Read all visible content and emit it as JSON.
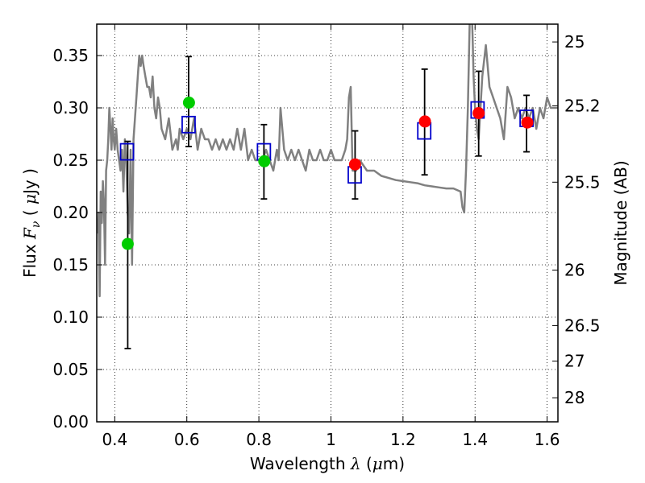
{
  "chart_data": {
    "type": "scatter",
    "title": "",
    "xlabel": {
      "prefix": "Wavelength  ",
      "symbol": "λ",
      "unit_open": " (",
      "unit_mu": "μ",
      "unit_close": "m)"
    },
    "ylabel": {
      "prefix": "Flux  ",
      "symbol": "F",
      "subscript": "ν",
      "unit_open": "  ( ",
      "unit_mu": "μ",
      "unit_close": "Jy )"
    },
    "y2label": "Magnitude (AB)",
    "xlim": [
      0.35,
      1.63
    ],
    "ylim": [
      0.0,
      0.38
    ],
    "grid": true,
    "x_ticks": [
      {
        "value": 0.4,
        "label": "0.4"
      },
      {
        "value": 0.6,
        "label": "0.6"
      },
      {
        "value": 0.8,
        "label": "0.8"
      },
      {
        "value": 1.0,
        "label": "1"
      },
      {
        "value": 1.2,
        "label": "1.2"
      },
      {
        "value": 1.4,
        "label": "1.4"
      },
      {
        "value": 1.6,
        "label": "1.6"
      }
    ],
    "y_ticks": [
      {
        "value": 0.0,
        "label": "0.00"
      },
      {
        "value": 0.05,
        "label": "0.05"
      },
      {
        "value": 0.1,
        "label": "0.10"
      },
      {
        "value": 0.15,
        "label": "0.15"
      },
      {
        "value": 0.2,
        "label": "0.20"
      },
      {
        "value": 0.25,
        "label": "0.25"
      },
      {
        "value": 0.3,
        "label": "0.30"
      },
      {
        "value": 0.35,
        "label": "0.35"
      }
    ],
    "y2_ticks": [
      {
        "flux": 0.363,
        "label": "25"
      },
      {
        "flux": 0.302,
        "label": "25.2"
      },
      {
        "flux": 0.229,
        "label": "25.5"
      },
      {
        "flux": 0.145,
        "label": "26"
      },
      {
        "flux": 0.092,
        "label": "26.5"
      },
      {
        "flux": 0.058,
        "label": "27"
      },
      {
        "flux": 0.023,
        "label": "28"
      }
    ],
    "series": [
      {
        "kind": "line",
        "color": "#808080",
        "x": [
          0.352,
          0.355,
          0.358,
          0.361,
          0.364,
          0.367,
          0.37,
          0.373,
          0.376,
          0.379,
          0.382,
          0.385,
          0.388,
          0.391,
          0.394,
          0.397,
          0.4,
          0.404,
          0.408,
          0.412,
          0.416,
          0.42,
          0.424,
          0.428,
          0.432,
          0.436,
          0.44,
          0.444,
          0.448,
          0.452,
          0.456,
          0.46,
          0.464,
          0.468,
          0.472,
          0.476,
          0.48,
          0.485,
          0.49,
          0.495,
          0.5,
          0.505,
          0.51,
          0.515,
          0.52,
          0.525,
          0.53,
          0.54,
          0.55,
          0.56,
          0.57,
          0.575,
          0.58,
          0.59,
          0.6,
          0.61,
          0.62,
          0.63,
          0.64,
          0.65,
          0.66,
          0.67,
          0.68,
          0.69,
          0.7,
          0.71,
          0.72,
          0.73,
          0.74,
          0.75,
          0.76,
          0.77,
          0.78,
          0.79,
          0.8,
          0.81,
          0.82,
          0.83,
          0.84,
          0.85,
          0.855,
          0.86,
          0.87,
          0.88,
          0.89,
          0.9,
          0.91,
          0.92,
          0.93,
          0.94,
          0.95,
          0.96,
          0.97,
          0.98,
          0.99,
          1.0,
          1.01,
          1.02,
          1.03,
          1.04,
          1.045,
          1.05,
          1.055,
          1.06,
          1.07,
          1.08,
          1.1,
          1.12,
          1.14,
          1.16,
          1.18,
          1.2,
          1.22,
          1.24,
          1.26,
          1.28,
          1.3,
          1.32,
          1.34,
          1.36,
          1.365,
          1.37,
          1.375,
          1.38,
          1.385,
          1.39,
          1.393,
          1.396,
          1.4,
          1.405,
          1.41,
          1.42,
          1.43,
          1.44,
          1.45,
          1.46,
          1.47,
          1.48,
          1.49,
          1.5,
          1.51,
          1.52,
          1.53,
          1.54,
          1.55,
          1.56,
          1.57,
          1.58,
          1.59,
          1.6,
          1.61,
          1.62,
          1.63
        ],
        "y": [
          0.18,
          0.2,
          0.12,
          0.22,
          0.19,
          0.23,
          0.21,
          0.15,
          0.24,
          0.25,
          0.27,
          0.3,
          0.28,
          0.26,
          0.29,
          0.27,
          0.26,
          0.28,
          0.26,
          0.25,
          0.24,
          0.26,
          0.22,
          0.27,
          0.25,
          0.2,
          0.18,
          0.26,
          0.15,
          0.27,
          0.29,
          0.31,
          0.33,
          0.35,
          0.34,
          0.35,
          0.34,
          0.33,
          0.32,
          0.32,
          0.31,
          0.33,
          0.3,
          0.29,
          0.31,
          0.3,
          0.28,
          0.27,
          0.29,
          0.26,
          0.27,
          0.26,
          0.28,
          0.27,
          0.28,
          0.27,
          0.29,
          0.26,
          0.28,
          0.27,
          0.27,
          0.26,
          0.27,
          0.26,
          0.27,
          0.26,
          0.27,
          0.26,
          0.28,
          0.26,
          0.28,
          0.25,
          0.26,
          0.25,
          0.25,
          0.25,
          0.26,
          0.25,
          0.24,
          0.26,
          0.25,
          0.3,
          0.26,
          0.25,
          0.26,
          0.25,
          0.26,
          0.25,
          0.24,
          0.26,
          0.25,
          0.25,
          0.26,
          0.25,
          0.25,
          0.26,
          0.25,
          0.25,
          0.25,
          0.26,
          0.27,
          0.31,
          0.32,
          0.24,
          0.24,
          0.25,
          0.24,
          0.24,
          0.235,
          0.233,
          0.231,
          0.23,
          0.229,
          0.228,
          0.226,
          0.225,
          0.224,
          0.223,
          0.223,
          0.22,
          0.205,
          0.2,
          0.24,
          0.3,
          0.38,
          0.4,
          0.37,
          0.33,
          0.3,
          0.28,
          0.27,
          0.33,
          0.36,
          0.32,
          0.31,
          0.3,
          0.29,
          0.27,
          0.32,
          0.31,
          0.29,
          0.3,
          0.29,
          0.3,
          0.29,
          0.3,
          0.28,
          0.3,
          0.29,
          0.31,
          0.3,
          0.3,
          0.3
        ]
      },
      {
        "kind": "errorbars",
        "color": "#000000",
        "x": [
          0.436,
          0.605,
          0.814,
          1.067,
          1.26,
          1.41,
          1.543
        ],
        "low": [
          0.07,
          0.263,
          0.213,
          0.213,
          0.236,
          0.254,
          0.258
        ],
        "high": [
          0.268,
          0.349,
          0.284,
          0.278,
          0.337,
          0.335,
          0.312
        ]
      },
      {
        "kind": "open-squares",
        "color": "#0000cc",
        "x": [
          0.434,
          0.605,
          0.814,
          1.066,
          1.259,
          1.407,
          1.543
        ],
        "y": [
          0.258,
          0.284,
          0.258,
          0.236,
          0.278,
          0.298,
          0.29
        ]
      },
      {
        "kind": "filled-circles",
        "color": "#00cc00",
        "x": [
          0.436,
          0.606,
          0.815
        ],
        "y": [
          0.17,
          0.305,
          0.249
        ]
      },
      {
        "kind": "filled-circles",
        "color": "#ff0000",
        "x": [
          1.067,
          1.261,
          1.41,
          1.545
        ],
        "y": [
          0.246,
          0.287,
          0.295,
          0.286
        ]
      }
    ]
  }
}
